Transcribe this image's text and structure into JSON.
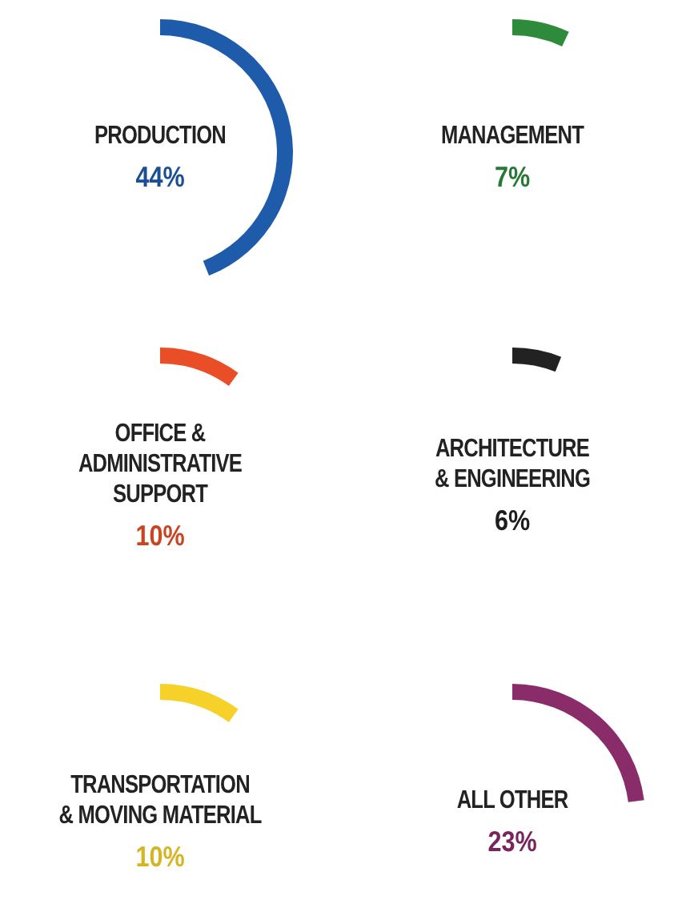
{
  "chart_data": {
    "type": "other",
    "categories": [
      "PRODUCTION",
      "MANAGEMENT",
      "OFFICE &\nADMINISTRATIVE\nSUPPORT",
      "ARCHITECTURE\n& ENGINEERING",
      "TRANSPORTATION\n& MOVING MATERIAL",
      "ALL OTHER"
    ],
    "values": [
      44,
      7,
      10,
      6,
      10,
      23
    ],
    "value_labels": [
      "44%",
      "7%",
      "10%",
      "6%",
      "10%",
      "23%"
    ],
    "colors": [
      "#1f5bab",
      "#2e8b3c",
      "#ea4e27",
      "#222222",
      "#f6d12a",
      "#8a2b6a"
    ]
  }
}
